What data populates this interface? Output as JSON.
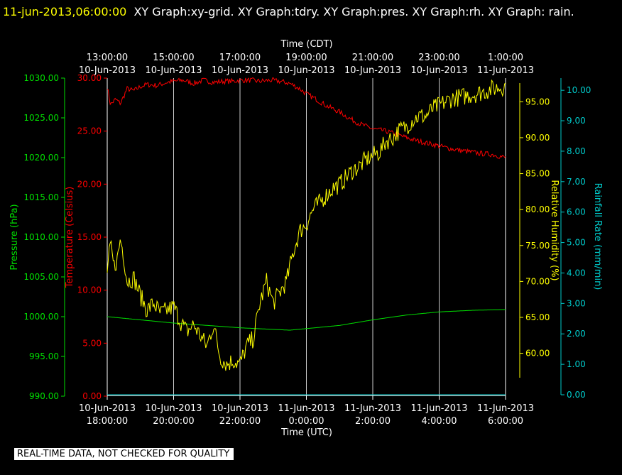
{
  "header": {
    "timestamp": "11-jun-2013,06:00:00",
    "graphs": "XY Graph:xy-grid.  XY Graph:tdry.  XY Graph:pres.  XY Graph:rh.  XY Graph: rain."
  },
  "footer": {
    "notice": "REAL-TIME DATA, NOT CHECKED FOR QUALITY"
  },
  "colors": {
    "background": "#000000",
    "timestamp": "#ffff00",
    "pressure": "#00e000",
    "temperature": "#ff0000",
    "humidity": "#ffff00",
    "rain": "#00cccc",
    "grid": "#ffffff"
  },
  "chart_data": {
    "type": "line",
    "xlabel_top": "Time (CDT)",
    "xlabel_bottom": "Time (UTC)",
    "x_unit": "hours (UTC)",
    "xlim": [
      0,
      12
    ],
    "grid_x": [
      2,
      4,
      6,
      8,
      10
    ],
    "x_ticks_top": [
      {
        "x": 0,
        "time": "13:00:00",
        "date": "10-Jun-2013"
      },
      {
        "x": 2,
        "time": "15:00:00",
        "date": "10-Jun-2013"
      },
      {
        "x": 4,
        "time": "17:00:00",
        "date": "10-Jun-2013"
      },
      {
        "x": 6,
        "time": "19:00:00",
        "date": "10-Jun-2013"
      },
      {
        "x": 8,
        "time": "21:00:00",
        "date": "10-Jun-2013"
      },
      {
        "x": 10,
        "time": "23:00:00",
        "date": "10-Jun-2013"
      },
      {
        "x": 12,
        "time": "1:00:00",
        "date": "11-Jun-2013"
      }
    ],
    "x_ticks_bottom": [
      {
        "x": 0,
        "date": "10-Jun-2013",
        "time": "18:00:00"
      },
      {
        "x": 2,
        "date": "10-Jun-2013",
        "time": "20:00:00"
      },
      {
        "x": 4,
        "date": "10-Jun-2013",
        "time": "22:00:00"
      },
      {
        "x": 6,
        "date": "11-Jun-2013",
        "time": "0:00:00"
      },
      {
        "x": 8,
        "date": "11-Jun-2013",
        "time": "2:00:00"
      },
      {
        "x": 10,
        "date": "11-Jun-2013",
        "time": "4:00:00"
      },
      {
        "x": 12,
        "date": "11-Jun-2013",
        "time": "6:00:00"
      }
    ],
    "axes": [
      {
        "id": "pressure",
        "label": "Pressure (hPa)",
        "ylim": [
          990,
          1030
        ],
        "ticks": [
          "990.00",
          "995.00",
          "1000.00",
          "1005.00",
          "1010.00",
          "1015.00",
          "1020.00",
          "1025.00",
          "1030.00"
        ]
      },
      {
        "id": "temperature",
        "label": "Temperature (Celsius)",
        "ylim": [
          0,
          30
        ],
        "ticks": [
          "0.00",
          "5.00",
          "10.00",
          "15.00",
          "20.00",
          "25.00",
          "30.00"
        ]
      },
      {
        "id": "humidity",
        "label": "Relative Humidity (%)",
        "ylim": [
          56.6,
          97.6
        ],
        "ticks": [
          "60.00",
          "65.00",
          "70.00",
          "75.00",
          "80.00",
          "85.00",
          "90.00",
          "95.00"
        ]
      },
      {
        "id": "rain",
        "label": "Rainfall Rate (mm/min)",
        "ylim": [
          0,
          10.4
        ],
        "ticks": [
          "0.00",
          "1.00",
          "2.00",
          "3.00",
          "4.00",
          "5.00",
          "6.00",
          "7.00",
          "8.00",
          "9.00",
          "10.00"
        ]
      }
    ],
    "series": [
      {
        "axis": "temperature",
        "jitter": 0.25,
        "x": [
          0,
          0.1,
          0.25,
          0.4,
          0.6,
          0.8,
          1.0,
          1.2,
          1.5,
          1.8,
          2.0,
          2.3,
          2.6,
          2.9,
          3.2,
          3.5,
          3.8,
          4.0,
          4.3,
          4.6,
          4.9,
          5.2,
          5.5,
          5.8,
          6.0,
          6.3,
          6.6,
          7.0,
          7.3,
          7.6,
          8.0,
          8.4,
          8.8,
          9.2,
          9.6,
          10.0,
          10.4,
          10.8,
          11.2,
          11.6,
          12.0
        ],
        "y": [
          29.2,
          27.5,
          28.0,
          27.6,
          29.0,
          28.8,
          29.2,
          29.4,
          29.3,
          29.6,
          29.7,
          29.8,
          29.5,
          29.8,
          29.6,
          29.7,
          29.7,
          29.8,
          29.8,
          29.7,
          29.8,
          29.7,
          29.5,
          29.0,
          28.5,
          28.0,
          27.4,
          26.8,
          26.2,
          25.7,
          25.2,
          25.0,
          24.6,
          24.2,
          23.9,
          23.6,
          23.3,
          23.1,
          22.9,
          22.8,
          22.5
        ]
      },
      {
        "axis": "pressure",
        "jitter": 0.0,
        "x": [
          0,
          1,
          2,
          3,
          4,
          5,
          5.5,
          6,
          7,
          8,
          9,
          10,
          11,
          12
        ],
        "y": [
          1000.0,
          999.6,
          999.2,
          998.9,
          998.6,
          998.4,
          998.3,
          998.5,
          998.9,
          999.6,
          1000.2,
          1000.6,
          1000.8,
          1000.9
        ]
      },
      {
        "axis": "humidity",
        "jitter": 1.3,
        "x": [
          0,
          0.1,
          0.2,
          0.3,
          0.4,
          0.5,
          0.6,
          0.8,
          1.0,
          1.2,
          1.4,
          1.6,
          1.8,
          2.0,
          2.2,
          2.4,
          2.6,
          2.8,
          3.0,
          3.2,
          3.4,
          3.6,
          3.8,
          4.0,
          4.2,
          4.4,
          4.6,
          4.8,
          5.0,
          5.2,
          5.4,
          5.6,
          5.8,
          6.0,
          6.2,
          6.4,
          6.6,
          6.8,
          7.0,
          7.2,
          7.4,
          7.6,
          7.8,
          8.0,
          8.2,
          8.4,
          8.6,
          8.8,
          9.0,
          9.2,
          9.4,
          9.6,
          9.8,
          10.0,
          10.2,
          10.4,
          10.6,
          10.8,
          11.0,
          11.2,
          11.4,
          11.6,
          11.8,
          12.0
        ],
        "y": [
          71.5,
          75.0,
          72.0,
          73.0,
          76.0,
          73.5,
          70.0,
          70.5,
          68.0,
          66.0,
          67.0,
          65.5,
          66.0,
          66.5,
          64.5,
          63.0,
          64.0,
          62.5,
          61.0,
          64.0,
          59.5,
          58.5,
          59.0,
          58.5,
          61.0,
          62.0,
          67.0,
          70.0,
          67.0,
          68.5,
          70.0,
          74.0,
          77.0,
          78.0,
          80.0,
          81.0,
          82.0,
          83.0,
          83.5,
          84.5,
          85.5,
          86.0,
          87.0,
          87.5,
          88.0,
          89.5,
          90.0,
          91.0,
          91.5,
          92.5,
          93.0,
          93.0,
          94.0,
          94.5,
          95.0,
          95.5,
          95.6,
          95.8,
          96.0,
          96.2,
          96.5,
          96.8,
          97.0,
          97.2
        ]
      },
      {
        "axis": "rain",
        "jitter": 0.0,
        "x": [
          0,
          12
        ],
        "y": [
          0.0,
          0.0
        ]
      }
    ]
  }
}
